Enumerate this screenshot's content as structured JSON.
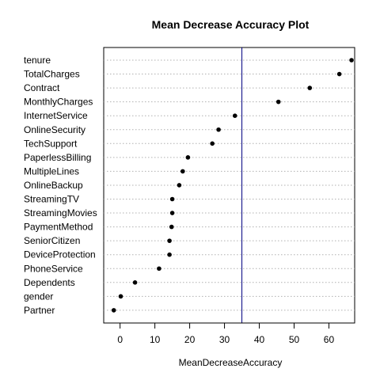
{
  "chart_data": {
    "type": "dot",
    "title": "Mean Decrease Accuracy Plot",
    "xlabel": "MeanDecreaseAccuracy",
    "xlim": [
      -4.7,
      67.4
    ],
    "xticks": [
      0,
      10,
      20,
      30,
      40,
      50,
      60
    ],
    "reference_line": 35,
    "grid": "horizontal-dotted",
    "series": [
      {
        "categories": [
          "tenure",
          "TotalCharges",
          "Contract",
          "MonthlyCharges",
          "InternetService",
          "OnlineSecurity",
          "TechSupport",
          "PaperlessBilling",
          "MultipleLines",
          "OnlineBackup",
          "StreamingTV",
          "StreamingMovies",
          "PaymentMethod",
          "SeniorCitizen",
          "DeviceProtection",
          "PhoneService",
          "Dependents",
          "gender",
          "Partner"
        ],
        "values": [
          66.5,
          63,
          54.5,
          45.5,
          33,
          28.3,
          26.5,
          19.5,
          18,
          17,
          15,
          15,
          14.8,
          14.2,
          14.2,
          11.2,
          4.3,
          0.2,
          -1.8
        ]
      }
    ]
  }
}
